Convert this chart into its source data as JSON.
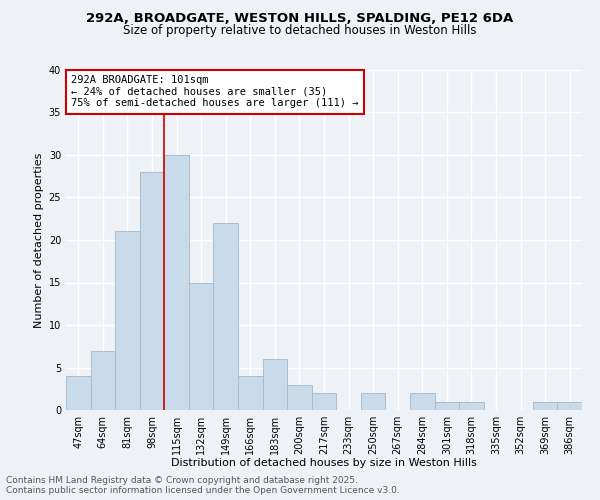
{
  "title1": "292A, BROADGATE, WESTON HILLS, SPALDING, PE12 6DA",
  "title2": "Size of property relative to detached houses in Weston Hills",
  "xlabel": "Distribution of detached houses by size in Weston Hills",
  "ylabel": "Number of detached properties",
  "categories": [
    "47sqm",
    "64sqm",
    "81sqm",
    "98sqm",
    "115sqm",
    "132sqm",
    "149sqm",
    "166sqm",
    "183sqm",
    "200sqm",
    "217sqm",
    "233sqm",
    "250sqm",
    "267sqm",
    "284sqm",
    "301sqm",
    "318sqm",
    "335sqm",
    "352sqm",
    "369sqm",
    "386sqm"
  ],
  "values": [
    4,
    7,
    21,
    28,
    30,
    15,
    22,
    4,
    6,
    3,
    2,
    0,
    2,
    0,
    2,
    1,
    1,
    0,
    0,
    1,
    1
  ],
  "bar_color": "#c9daea",
  "bar_edge_color": "#aabcce",
  "vline_x": 3.5,
  "vline_color": "#cc0000",
  "annotation_text": "292A BROADGATE: 101sqm\n← 24% of detached houses are smaller (35)\n75% of semi-detached houses are larger (111) →",
  "annotation_box_color": "#ffffff",
  "annotation_box_edge_color": "#cc0000",
  "ylim": [
    0,
    40
  ],
  "yticks": [
    0,
    5,
    10,
    15,
    20,
    25,
    30,
    35,
    40
  ],
  "background_color": "#eef2f7",
  "grid_color": "#ffffff",
  "footer1": "Contains HM Land Registry data © Crown copyright and database right 2025.",
  "footer2": "Contains public sector information licensed under the Open Government Licence v3.0.",
  "title1_fontsize": 9.5,
  "title2_fontsize": 8.5,
  "xlabel_fontsize": 8,
  "ylabel_fontsize": 8,
  "tick_fontsize": 7,
  "annotation_fontsize": 7.5,
  "footer_fontsize": 6.5
}
